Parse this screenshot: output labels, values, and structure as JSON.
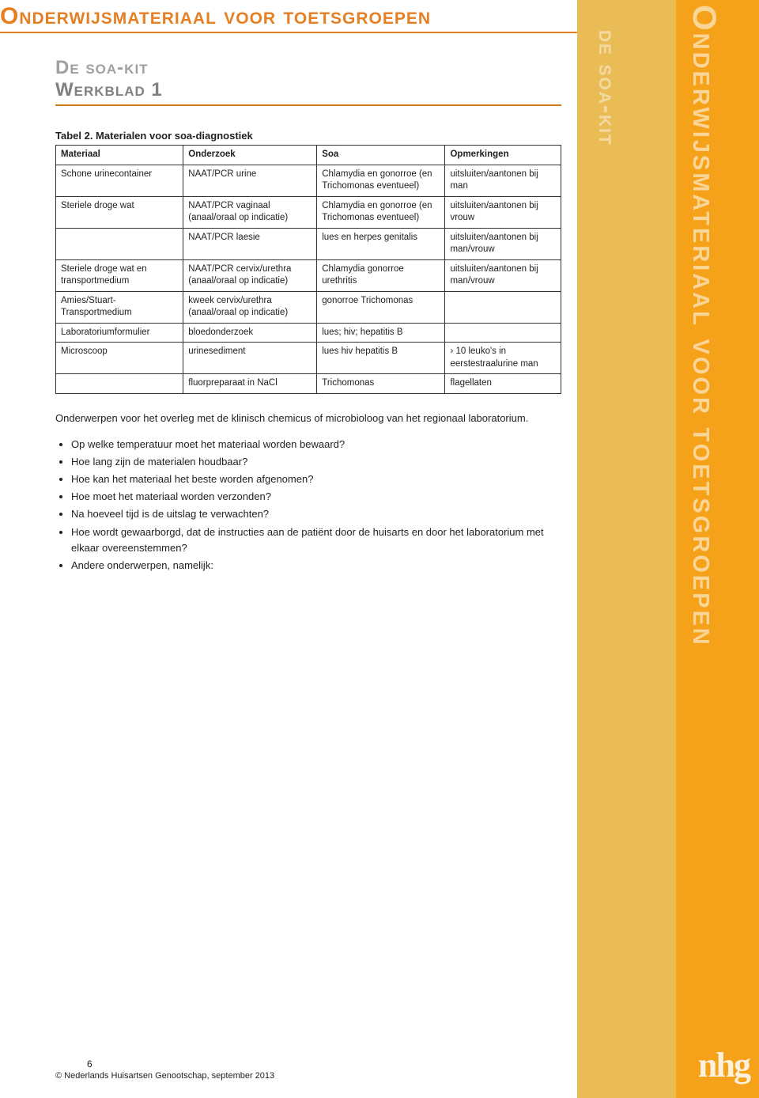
{
  "colors": {
    "orange": "#e67e22",
    "sidebar_yellow": "#eabc55",
    "sidebar_orange": "#f5a21a",
    "sidebar_text": "#ffffff",
    "gray_sub1": "#a0a0a0",
    "gray_sub2": "#808080",
    "table_border": "#333333"
  },
  "header": {
    "main_title": "Onderwijsmateriaal voor toetsgroepen",
    "subtitle1": "De soa-kit",
    "subtitle2": "Werkblad 1"
  },
  "sidebar": {
    "kit_text": "de soa-kit",
    "big_text": "Onderwijsmateriaal voor toetsgroepen"
  },
  "table": {
    "caption": "Tabel 2. Materialen voor soa-diagnostiek",
    "columns": [
      "Materiaal",
      "Onderzoek",
      "Soa",
      "Opmerkingen"
    ],
    "rows": [
      [
        "Schone urinecontainer",
        "NAAT/PCR urine",
        "Chlamydia en gonorroe (en Trichomonas eventueel)",
        "uitsluiten/aantonen bij man"
      ],
      [
        "Steriele droge wat",
        "NAAT/PCR vaginaal (anaal/oraal op indicatie)",
        "Chlamydia en gonorroe (en Trichomonas eventueel)",
        "uitsluiten/aantonen bij vrouw"
      ],
      [
        "",
        "NAAT/PCR laesie",
        "lues en herpes genitalis",
        "uitsluiten/aantonen bij man/vrouw"
      ],
      [
        "Steriele droge wat en transportmedium",
        "NAAT/PCR cervix/urethra (anaal/oraal op indicatie)",
        "Chlamydia gonorroe urethritis",
        "uitsluiten/aantonen bij man/vrouw"
      ],
      [
        "Amies/Stuart-Transportmedium",
        "kweek cervix/urethra (anaal/oraal op indicatie)",
        "gonorroe Trichomonas",
        ""
      ],
      [
        "Laboratoriumformulier",
        "bloedonderzoek",
        "lues; hiv; hepatitis B",
        ""
      ],
      [
        "Microscoop",
        "urinesediment",
        "lues hiv hepatitis B",
        "› 10 leuko's in eerstestraalurine man"
      ],
      [
        "",
        "fluorpreparaat in NaCl",
        "Trichomonas",
        "flagellaten"
      ]
    ]
  },
  "intro_para": "Onderwerpen voor het overleg met de klinisch chemicus of microbioloog van het regionaal laboratorium.",
  "bullets": [
    "Op welke temperatuur moet het materiaal worden bewaard?",
    "Hoe lang zijn de materialen houdbaar?",
    "Hoe kan het materiaal het beste worden afgenomen?",
    "Hoe moet het materiaal worden verzonden?",
    "Na hoeveel tijd is de uitslag te verwachten?",
    "Hoe wordt gewaarborgd, dat de instructies aan de patiënt door de huisarts en door het laboratorium met elkaar overeenstemmen?",
    "Andere onderwerpen, namelijk:"
  ],
  "footer": {
    "page_number": "6",
    "copyright": "© Nederlands Huisartsen Genootschap, september 2013",
    "logo_text": "nhg"
  }
}
